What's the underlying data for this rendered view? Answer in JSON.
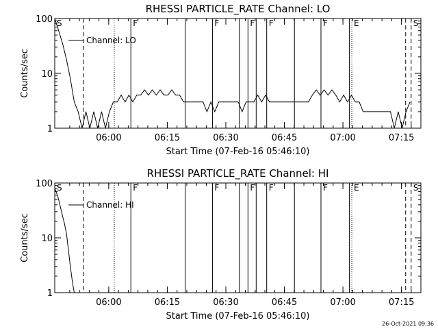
{
  "colors": {
    "background": "#ffffff",
    "foreground": "#000000"
  },
  "timestamp": "26-Oct-2021 09:36",
  "chart_data": [
    {
      "type": "line",
      "title": "RHESSI PARTICLE_RATE Channel: LO",
      "xlabel": "Start Time (07-Feb-16 05:46:10)",
      "ylabel": "Counts/sec",
      "y_scale": "log",
      "ylim": [
        1,
        100
      ],
      "y_ticks": [
        "1",
        "10",
        "100"
      ],
      "xlim_min_from_start": [
        0,
        93.8
      ],
      "x_tick_labels": [
        "06:00",
        "06:15",
        "06:30",
        "06:45",
        "07:00",
        "07:15"
      ],
      "x_ticks_min_from_start": [
        13.83,
        28.83,
        43.83,
        58.83,
        73.83,
        88.83
      ],
      "legend": {
        "label": "Channel: LO",
        "position": "top-left"
      },
      "series": [
        {
          "name": "Channel: LO",
          "x": [
            0,
            1,
            2,
            3,
            4,
            5,
            6,
            7,
            8,
            9,
            10,
            11,
            12,
            13,
            14,
            15,
            16,
            17,
            18,
            19,
            20,
            21,
            22,
            23,
            24,
            25,
            26,
            27,
            28,
            29,
            30,
            31,
            32,
            33,
            34,
            35,
            36,
            37,
            38,
            39,
            40,
            41,
            42,
            43,
            44,
            45,
            46,
            47,
            48,
            49,
            50,
            51,
            52,
            53,
            54,
            55,
            56,
            57,
            58,
            59,
            60,
            61,
            62,
            63,
            64,
            65,
            66,
            67,
            68,
            69,
            70,
            71,
            72,
            73,
            74,
            75,
            76,
            77,
            78,
            79,
            80,
            81,
            82,
            83,
            84,
            85,
            86,
            87,
            88,
            89,
            90,
            91
          ],
          "y": [
            100,
            60,
            35,
            18,
            8,
            3,
            2,
            1,
            2,
            1,
            2,
            1,
            2,
            1,
            2,
            3,
            3,
            4,
            3,
            4,
            3,
            4,
            4,
            5,
            4,
            5,
            4,
            5,
            4,
            4,
            5,
            4,
            4,
            3,
            3,
            3,
            3,
            3,
            3,
            2,
            3,
            2,
            3,
            3,
            3,
            3,
            3,
            3,
            2,
            3,
            3,
            3,
            4,
            3,
            4,
            3,
            3,
            3,
            3,
            3,
            3,
            3,
            3,
            3,
            3,
            3,
            4,
            5,
            4,
            5,
            4,
            5,
            4,
            3,
            4,
            3,
            4,
            3,
            3,
            2,
            2,
            2,
            2,
            2,
            2,
            2,
            2,
            1,
            2,
            1,
            2,
            3
          ]
        }
      ],
      "markers": [
        {
          "label": "S",
          "x": 0,
          "style": "solid"
        },
        {
          "label": "",
          "x": 7.35,
          "style": "dashed"
        },
        {
          "label": "",
          "x": 15.25,
          "style": "dotted"
        },
        {
          "label": "F",
          "x": 19.5,
          "style": "solid"
        },
        {
          "label": "",
          "x": 33.4,
          "style": "solid"
        },
        {
          "label": "F",
          "x": 40.4,
          "style": "solid"
        },
        {
          "label": "",
          "x": 47.3,
          "style": "solid"
        },
        {
          "label": "F",
          "x": 49.5,
          "style": "solid"
        },
        {
          "label": "",
          "x": 51.6,
          "style": "solid"
        },
        {
          "label": "F",
          "x": 54.3,
          "style": "solid"
        },
        {
          "label": "",
          "x": 61.4,
          "style": "solid"
        },
        {
          "label": "F",
          "x": 68.2,
          "style": "solid"
        },
        {
          "label": "",
          "x": 75.5,
          "style": "solid"
        },
        {
          "label": "E",
          "x": 76.1,
          "style": "dotted"
        },
        {
          "label": "",
          "x": 89.9,
          "style": "dashed"
        },
        {
          "label": "S",
          "x": 91.3,
          "style": "dashed"
        }
      ]
    },
    {
      "type": "line",
      "title": "RHESSI PARTICLE_RATE Channel: HI",
      "xlabel": "Start Time (07-Feb-16 05:46:10)",
      "ylabel": "Counts/sec",
      "y_scale": "log",
      "ylim": [
        1,
        100
      ],
      "y_ticks": [
        "1",
        "10",
        "100"
      ],
      "xlim_min_from_start": [
        0,
        93.8
      ],
      "x_tick_labels": [
        "06:00",
        "06:15",
        "06:30",
        "06:45",
        "07:00",
        "07:15"
      ],
      "x_ticks_min_from_start": [
        13.83,
        28.83,
        43.83,
        58.83,
        73.83,
        88.83
      ],
      "legend": {
        "label": "Channel: HI",
        "position": "top-left"
      },
      "series": [
        {
          "name": "Channel: HI",
          "x": [
            0,
            0.5,
            1,
            1.5,
            2,
            2.5,
            3,
            3.5,
            4,
            4.5,
            5
          ],
          "y": [
            80,
            65,
            50,
            35,
            25,
            18,
            12,
            6,
            3,
            1.6,
            1
          ]
        }
      ],
      "markers": [
        {
          "label": "S",
          "x": 0,
          "style": "solid"
        },
        {
          "label": "",
          "x": 7.35,
          "style": "dashed"
        },
        {
          "label": "",
          "x": 15.25,
          "style": "dotted"
        },
        {
          "label": "F",
          "x": 19.5,
          "style": "solid"
        },
        {
          "label": "",
          "x": 33.4,
          "style": "solid"
        },
        {
          "label": "F",
          "x": 40.4,
          "style": "solid"
        },
        {
          "label": "",
          "x": 47.3,
          "style": "solid"
        },
        {
          "label": "F",
          "x": 49.5,
          "style": "solid"
        },
        {
          "label": "",
          "x": 51.6,
          "style": "solid"
        },
        {
          "label": "F",
          "x": 54.3,
          "style": "solid"
        },
        {
          "label": "",
          "x": 61.4,
          "style": "solid"
        },
        {
          "label": "F",
          "x": 68.2,
          "style": "solid"
        },
        {
          "label": "",
          "x": 75.5,
          "style": "solid"
        },
        {
          "label": "E",
          "x": 76.1,
          "style": "dotted"
        },
        {
          "label": "",
          "x": 89.9,
          "style": "dashed"
        },
        {
          "label": "S",
          "x": 91.3,
          "style": "dashed"
        }
      ]
    }
  ]
}
